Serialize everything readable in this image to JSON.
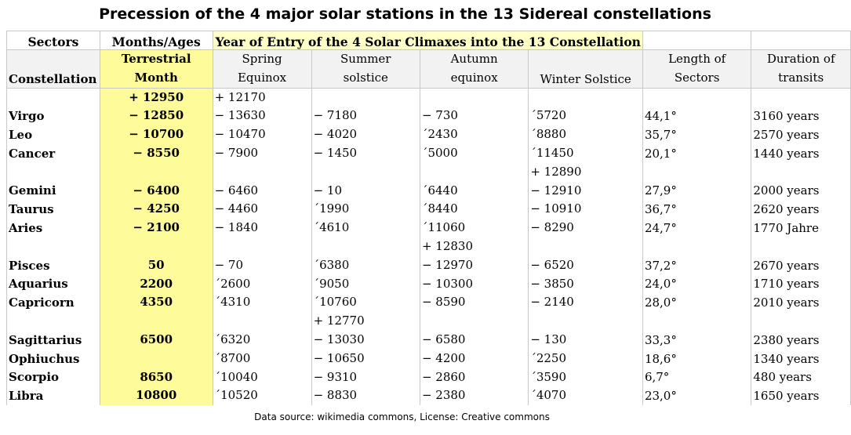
{
  "title": "Precession of the 4 major solar stations in the 13 Sidereal constellations",
  "footer": "Data source: wikimedia commons, License: Creative commons",
  "header_row1": {
    "sectors": "Sectors",
    "months": "Months/Ages",
    "year_of_entry": "Year of Entry of the 4 Solar Climaxes into the 13 Constellation"
  },
  "header_row2": {
    "constellation": "Constellation",
    "month_l1": "Terrestrial",
    "month_l2": "Month",
    "spring_l1": "Spring",
    "spring_l2": "Equinox",
    "summer_l1": "Summer",
    "summer_l2": "solstice",
    "autumn_l1": "Autumn",
    "autumn_l2": "equinox",
    "winter": "Winter Solstice",
    "length_l1": "Length of",
    "length_l2": "Sectors",
    "duration_l1": "Duration of",
    "duration_l2": "transits"
  },
  "colors": {
    "yellow_column": "#fefc9a",
    "banner": "#ffffc8",
    "header_bg": "#f2f2f2",
    "grid": "#c8c8c8"
  },
  "rows": [
    {
      "name": "Virgo",
      "month": [
        "+ 12950",
        "− 12850"
      ],
      "spring": [
        "+ 12170",
        "− 13630"
      ],
      "summer": [
        "",
        "− 7180"
      ],
      "autumn": [
        "",
        "− 730"
      ],
      "winter": [
        "",
        "´5720"
      ],
      "length": "44,1°",
      "duration": "3160 years"
    },
    {
      "name": "Leo",
      "month": [
        "− 10700"
      ],
      "spring": [
        "− 10470"
      ],
      "summer": [
        "− 4020"
      ],
      "autumn": [
        "´2430"
      ],
      "winter": [
        "´8880"
      ],
      "length": "35,7°",
      "duration": "2570 years"
    },
    {
      "name": "Cancer",
      "month": [
        "− 8550"
      ],
      "spring": [
        "− 7900"
      ],
      "summer": [
        "− 1450"
      ],
      "autumn": [
        "´5000"
      ],
      "winter": [
        "´11450"
      ],
      "length": "20,1°",
      "duration": "1440 years"
    },
    {
      "name": "Gemini",
      "month": [
        "",
        "− 6400"
      ],
      "spring": [
        "",
        "− 6460"
      ],
      "summer": [
        "",
        "− 10"
      ],
      "autumn": [
        "",
        "´6440"
      ],
      "winter": [
        "+ 12890",
        "− 12910"
      ],
      "length": "27,9°",
      "duration": "2000 years"
    },
    {
      "name": "Taurus",
      "month": [
        "− 4250"
      ],
      "spring": [
        "− 4460"
      ],
      "summer": [
        "´1990"
      ],
      "autumn": [
        "´8440"
      ],
      "winter": [
        "− 10910"
      ],
      "length": "36,7°",
      "duration": "2620 years"
    },
    {
      "name": "Aries",
      "month": [
        "− 2100"
      ],
      "spring": [
        "− 1840"
      ],
      "summer": [
        "´4610"
      ],
      "autumn": [
        "´11060"
      ],
      "winter": [
        "− 8290"
      ],
      "length": "24,7°",
      "duration": "1770 Jahre"
    },
    {
      "name": "Pisces",
      "month": [
        "",
        "50"
      ],
      "spring": [
        "",
        "− 70"
      ],
      "summer": [
        "",
        "´6380"
      ],
      "autumn": [
        "+ 12830",
        "− 12970"
      ],
      "winter": [
        "",
        "− 6520"
      ],
      "length": "37,2°",
      "duration": "2670 years"
    },
    {
      "name": "Aquarius",
      "month": [
        "2200"
      ],
      "spring": [
        "´2600"
      ],
      "summer": [
        "´9050"
      ],
      "autumn": [
        "− 10300"
      ],
      "winter": [
        "− 3850"
      ],
      "length": "24,0°",
      "duration": "1710 years"
    },
    {
      "name": "Capricorn",
      "month": [
        "4350"
      ],
      "spring": [
        "´4310"
      ],
      "summer": [
        "´10760"
      ],
      "autumn": [
        "− 8590"
      ],
      "winter": [
        "− 2140"
      ],
      "length": "28,0°",
      "duration": "2010 years"
    },
    {
      "name": "Sagittarius",
      "month": [
        "",
        "6500"
      ],
      "spring": [
        "",
        "´6320"
      ],
      "summer": [
        "+ 12770",
        "− 13030"
      ],
      "autumn": [
        "",
        "− 6580"
      ],
      "winter": [
        "",
        "− 130"
      ],
      "length": "33,3°",
      "duration": "2380 years"
    },
    {
      "name": "Ophiuchus",
      "month": [
        ""
      ],
      "spring": [
        "´8700"
      ],
      "summer": [
        "− 10650"
      ],
      "autumn": [
        "− 4200"
      ],
      "winter": [
        "´2250"
      ],
      "length": "18,6°",
      "duration": "1340 years"
    },
    {
      "name": "Scorpio",
      "month": [
        "8650"
      ],
      "spring": [
        "´10040"
      ],
      "summer": [
        "− 9310"
      ],
      "autumn": [
        "− 2860"
      ],
      "winter": [
        "´3590"
      ],
      "length": "6,7°",
      "duration": "480 years"
    },
    {
      "name": "Libra",
      "month": [
        "10800"
      ],
      "spring": [
        "´10520"
      ],
      "summer": [
        "− 8830"
      ],
      "autumn": [
        "− 2380"
      ],
      "winter": [
        "´4070"
      ],
      "length": "23,0°",
      "duration": "1650 years"
    }
  ]
}
